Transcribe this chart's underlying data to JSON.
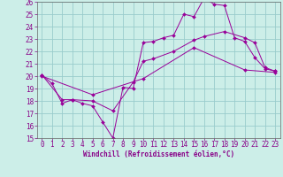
{
  "xlabel": "Windchill (Refroidissement éolien,°C)",
  "bg_color": "#cceee8",
  "grid_color": "#99cccc",
  "line_color": "#990099",
  "xlim": [
    -0.5,
    23.5
  ],
  "ylim": [
    15,
    26
  ],
  "yticks": [
    15,
    16,
    17,
    18,
    19,
    20,
    21,
    22,
    23,
    24,
    25,
    26
  ],
  "xticks": [
    0,
    1,
    2,
    3,
    4,
    5,
    6,
    7,
    8,
    9,
    10,
    11,
    12,
    13,
    14,
    15,
    16,
    17,
    18,
    19,
    20,
    21,
    22,
    23
  ],
  "series1_x": [
    0,
    1,
    2,
    3,
    4,
    5,
    6,
    7,
    8,
    9,
    10,
    11,
    12,
    13,
    14,
    15,
    16,
    17,
    18,
    19,
    20,
    21,
    22,
    23
  ],
  "series1_y": [
    20.1,
    19.4,
    17.8,
    18.1,
    17.8,
    17.6,
    16.3,
    15.0,
    19.1,
    19.0,
    22.7,
    22.8,
    23.1,
    23.3,
    25.0,
    24.8,
    26.3,
    25.8,
    25.7,
    23.1,
    22.8,
    21.5,
    20.6,
    20.4
  ],
  "series2_x": [
    0,
    2,
    3,
    5,
    7,
    9,
    10,
    11,
    13,
    15,
    16,
    18,
    20,
    21,
    22,
    23
  ],
  "series2_y": [
    20.1,
    18.1,
    18.1,
    18.0,
    17.2,
    19.5,
    21.2,
    21.4,
    22.0,
    22.9,
    23.2,
    23.6,
    23.1,
    22.7,
    20.7,
    20.4
  ],
  "series3_x": [
    0,
    5,
    10,
    15,
    20,
    23
  ],
  "series3_y": [
    20.0,
    18.5,
    19.8,
    22.3,
    20.5,
    20.3
  ],
  "tick_color": "#880088",
  "tick_fontsize": 5.5,
  "xlabel_fontsize": 5.5
}
